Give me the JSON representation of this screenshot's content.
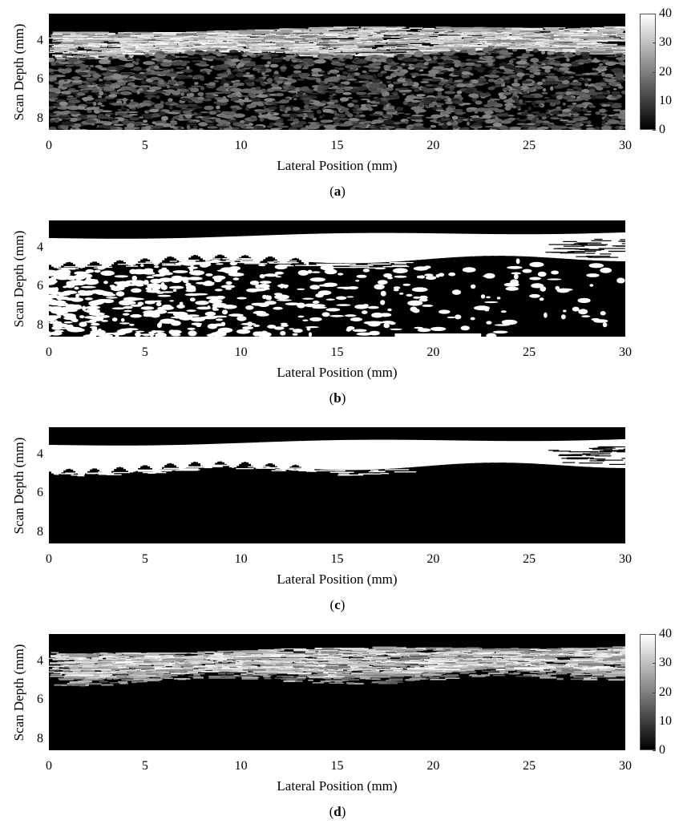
{
  "axes": {
    "ylabel": "Scan Depth (mm)",
    "xlabel": "Lateral Position (mm)",
    "yticks": [
      "4",
      "6",
      "8"
    ],
    "xticks": [
      "0",
      "5",
      "10",
      "15",
      "20",
      "25",
      "30"
    ]
  },
  "colorbar": {
    "ticks": [
      "40",
      "30",
      "20",
      "10",
      "0"
    ],
    "range": [
      0,
      40
    ]
  },
  "panels": [
    {
      "id": "a",
      "caption": "a",
      "kind": "grayscale-speckle",
      "has_colorbar": true
    },
    {
      "id": "b",
      "caption": "b",
      "kind": "binary-noisy",
      "has_colorbar": false
    },
    {
      "id": "c",
      "caption": "c",
      "kind": "binary-clean",
      "has_colorbar": false
    },
    {
      "id": "d",
      "caption": "d",
      "kind": "grayscale-masked",
      "has_colorbar": true
    }
  ],
  "chart_data": [
    {
      "type": "heatmap",
      "panel": "a",
      "xlabel": "Lateral Position (mm)",
      "ylabel": "Scan Depth (mm)",
      "xlim": [
        0,
        30
      ],
      "ylim": [
        2.6,
        8.6
      ],
      "color_range": [
        0,
        40
      ],
      "colormap": "gray",
      "x_ticks": [
        0,
        5,
        10,
        15,
        20,
        25,
        30
      ],
      "y_ticks": [
        4,
        6,
        8
      ]
    },
    {
      "type": "heatmap",
      "panel": "b",
      "xlabel": "Lateral Position (mm)",
      "ylabel": "Scan Depth (mm)",
      "xlim": [
        0,
        30
      ],
      "ylim": [
        2.6,
        8.6
      ],
      "colormap": "binary",
      "x_ticks": [
        0,
        5,
        10,
        15,
        20,
        25,
        30
      ],
      "y_ticks": [
        4,
        6,
        8
      ]
    },
    {
      "type": "heatmap",
      "panel": "c",
      "xlabel": "Lateral Position (mm)",
      "ylabel": "Scan Depth (mm)",
      "xlim": [
        0,
        30
      ],
      "ylim": [
        2.6,
        8.6
      ],
      "colormap": "binary",
      "x_ticks": [
        0,
        5,
        10,
        15,
        20,
        25,
        30
      ],
      "y_ticks": [
        4,
        6,
        8
      ]
    },
    {
      "type": "heatmap",
      "panel": "d",
      "xlabel": "Lateral Position (mm)",
      "ylabel": "Scan Depth (mm)",
      "xlim": [
        0,
        30
      ],
      "ylim": [
        2.6,
        8.6
      ],
      "color_range": [
        0,
        40
      ],
      "colormap": "gray",
      "x_ticks": [
        0,
        5,
        10,
        15,
        20,
        25,
        30
      ],
      "y_ticks": [
        4,
        6,
        8
      ]
    }
  ]
}
